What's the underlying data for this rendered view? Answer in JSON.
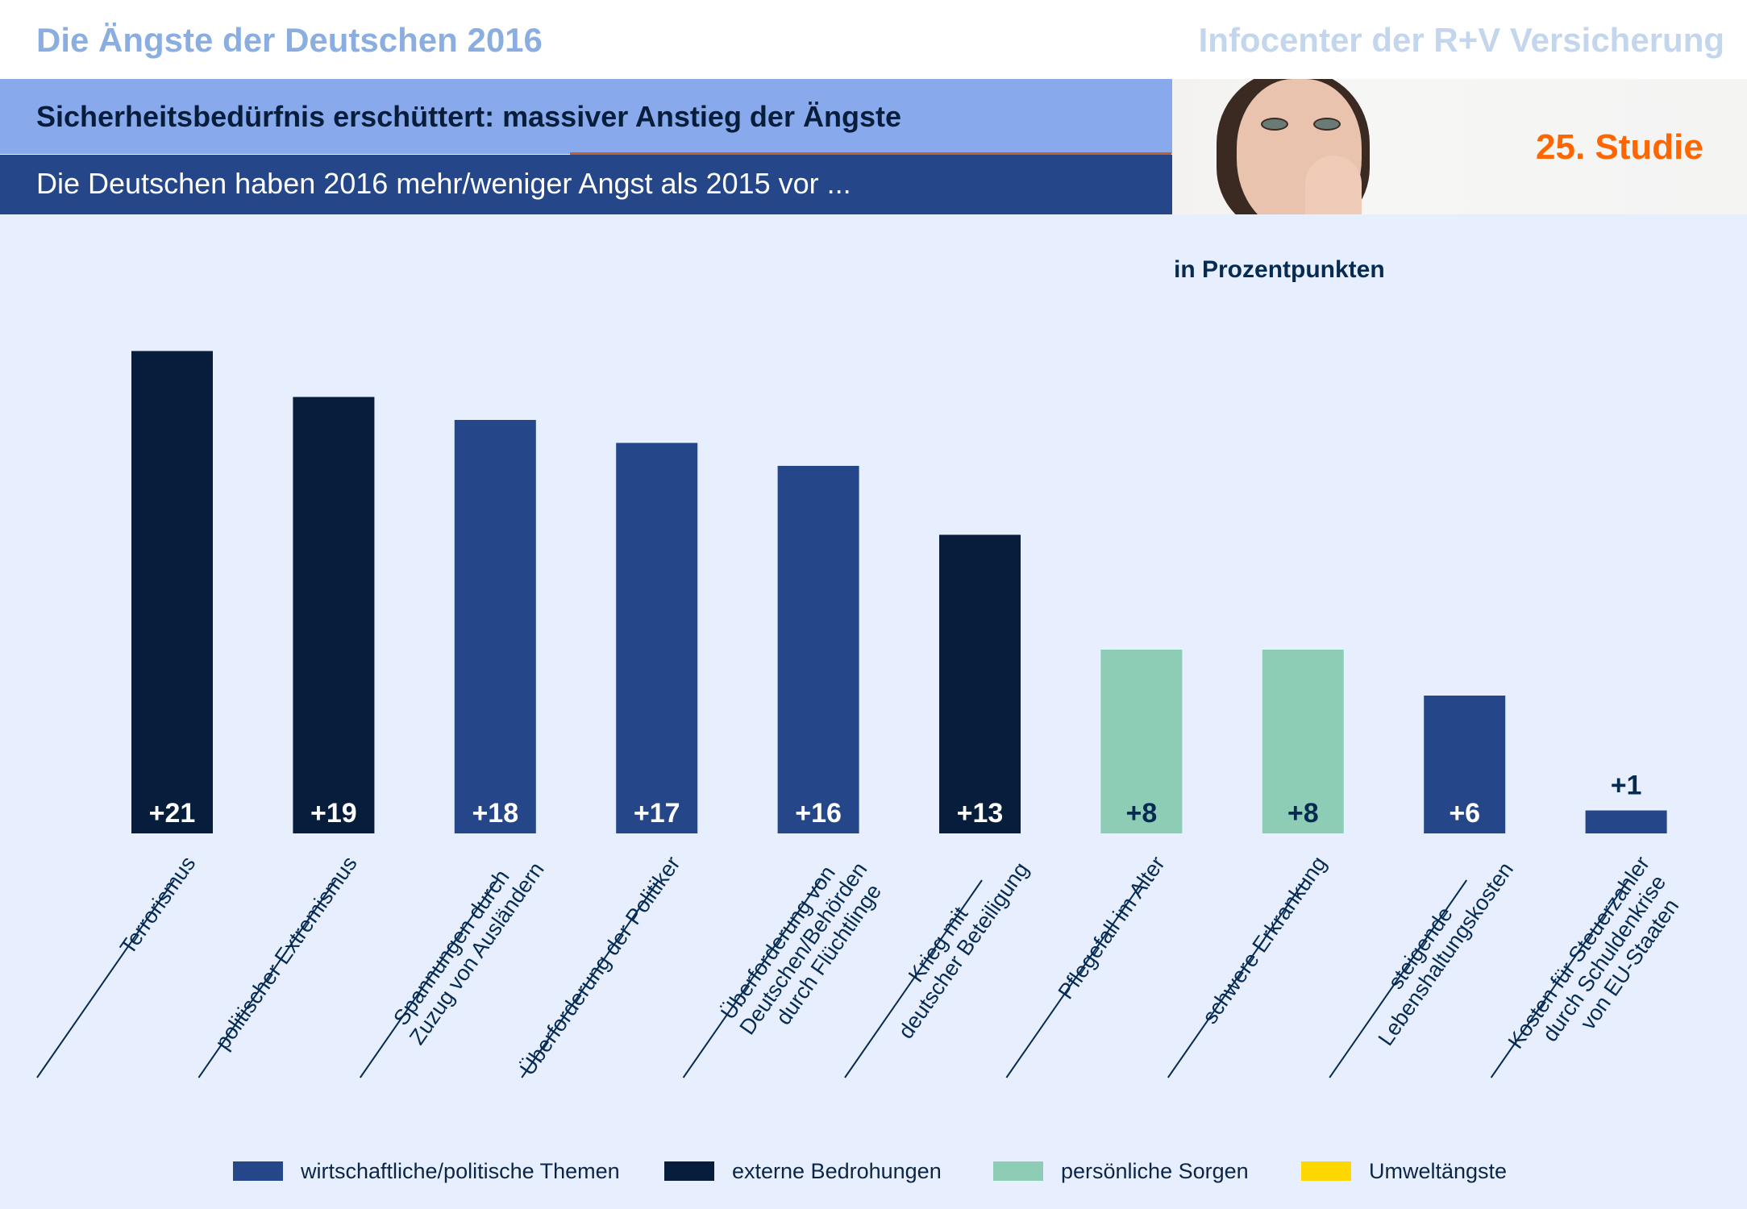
{
  "header": {
    "title": "Die Ängste der Deutschen 2016",
    "brand": "Infocenter der R+V Versicherung",
    "headline": "Sicherheitsbedürfnis erschüttert:  massiver Anstieg der Ängste",
    "subline": "Die Deutschen haben 2016 mehr/weniger Angst als 2015 vor ...",
    "study": "25. Studie",
    "photo": "worried-woman-photo"
  },
  "colors": {
    "wirtschaftlich": "#25478a",
    "extern": "#061d3c",
    "persoenlich": "#8ecdb5",
    "umwelt": "#ffd700",
    "accent": "#ff6600"
  },
  "chart_data": {
    "type": "bar",
    "title": "Die Deutschen haben 2016 mehr/weniger Angst als 2015 vor ...",
    "unit_label": "in Prozentpunkten",
    "xlabel": "",
    "ylabel": "in Prozentpunkten",
    "ylim": [
      0,
      21
    ],
    "grid": false,
    "legend_position": "bottom",
    "categories": [
      [
        "Terrorismus"
      ],
      [
        "politischer Extremismus"
      ],
      [
        "Spannungen durch",
        "Zuzug von Ausländern"
      ],
      [
        "Überforderung der Politiker"
      ],
      [
        "Überforderung von",
        "Deutschen/Behörden",
        "durch Flüchtlinge"
      ],
      [
        "Krieg mit",
        "deutscher Beteiligung"
      ],
      [
        "Pflegefall im Alter"
      ],
      [
        "schwere Erkrankung"
      ],
      [
        "steigende",
        "Lebenshaltungskosten"
      ],
      [
        "Kosten für Steuerzahler",
        "durch Schuldenkrise",
        "von EU-Staaten"
      ]
    ],
    "values": [
      21,
      19,
      18,
      17,
      16,
      13,
      8,
      8,
      6,
      1
    ],
    "value_labels": [
      "+21",
      "+19",
      "+18",
      "+17",
      "+16",
      "+13",
      "+8",
      "+8",
      "+6",
      "+1"
    ],
    "groups": [
      "extern",
      "extern",
      "wirtschaftlich",
      "wirtschaftlich",
      "wirtschaftlich",
      "extern",
      "persoenlich",
      "persoenlich",
      "wirtschaftlich",
      "wirtschaftlich"
    ],
    "legend": [
      {
        "key": "wirtschaftlich",
        "label": "wirtschaftliche/politische Themen"
      },
      {
        "key": "extern",
        "label": "externe Bedrohungen"
      },
      {
        "key": "persoenlich",
        "label": "persönliche Sorgen"
      },
      {
        "key": "umwelt",
        "label": "Umweltängste"
      }
    ]
  }
}
